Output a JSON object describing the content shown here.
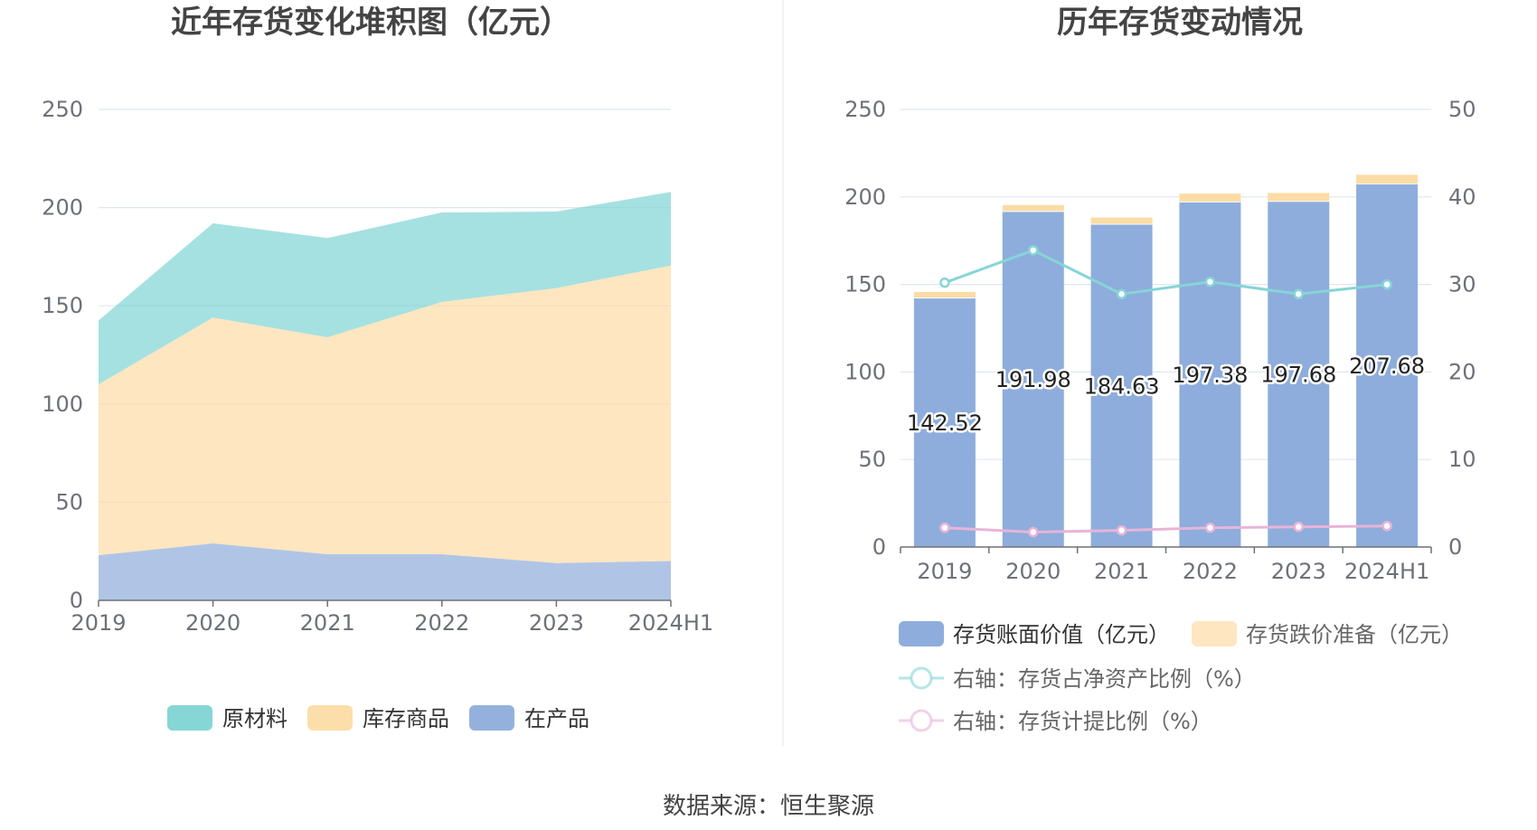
{
  "source": "数据来源：恒生聚源",
  "chart_data": [
    {
      "type": "area",
      "stacked": true,
      "title": "近年存货变化堆积图（亿元）",
      "categories": [
        "2019",
        "2020",
        "2021",
        "2022",
        "2023",
        "2024H1"
      ],
      "ylim": [
        0,
        250
      ],
      "yticks": [
        "0",
        "50",
        "100",
        "150",
        "200",
        "250"
      ],
      "grid": true,
      "legend_position": "bottom",
      "series": [
        {
          "name": "在产品",
          "color": "#8eaddc",
          "values": [
            23,
            29,
            23.5,
            23.5,
            19,
            20
          ]
        },
        {
          "name": "库存商品",
          "color": "#fcdca5",
          "values": [
            87,
            115,
            110.5,
            128.5,
            140,
            150.5
          ]
        },
        {
          "name": "原材料",
          "color": "#7fd4d4",
          "values": [
            32.5,
            48,
            50.5,
            45.5,
            39,
            37.5
          ]
        }
      ],
      "legend_order": [
        "原材料",
        "库存商品",
        "在产品"
      ]
    },
    {
      "type": "bar",
      "stacked": true,
      "title": "历年存货变动情况",
      "categories": [
        "2019",
        "2020",
        "2021",
        "2022",
        "2023",
        "2024H1"
      ],
      "ylim": [
        0,
        250
      ],
      "y2lim": [
        0,
        50
      ],
      "yticks": [
        "0",
        "50",
        "100",
        "150",
        "200",
        "250"
      ],
      "y2ticks": [
        "0",
        "10",
        "20",
        "30",
        "40",
        "50"
      ],
      "grid": true,
      "legend_position": "bottom",
      "series": [
        {
          "name": "存货账面价值（亿元）",
          "color": "#8eaddc",
          "type": "bar",
          "axis": "left",
          "values": [
            142.52,
            191.98,
            184.63,
            197.38,
            197.68,
            207.68
          ],
          "labels": [
            "142.52",
            "191.98",
            "184.63",
            "197.38",
            "197.68",
            "207.68"
          ]
        },
        {
          "name": "存货跌价准备（亿元）",
          "color": "#fcdca5",
          "type": "bar",
          "axis": "left",
          "values": [
            3.2,
            3.4,
            3.6,
            4.5,
            4.6,
            5.0
          ]
        },
        {
          "name": "右轴：存货占净资产比例（%）",
          "color": "#86d5d6",
          "type": "line",
          "axis": "right",
          "values": [
            30.2,
            33.9,
            28.9,
            30.3,
            28.9,
            30.0
          ]
        },
        {
          "name": "右轴：存货计提比例（%）",
          "color": "#e8b4d8",
          "type": "line",
          "axis": "right",
          "values": [
            2.2,
            1.7,
            1.9,
            2.2,
            2.3,
            2.4
          ]
        }
      ]
    }
  ]
}
